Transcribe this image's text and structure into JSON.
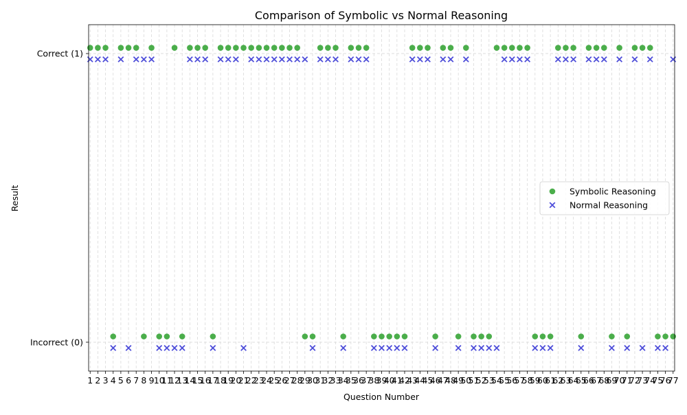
{
  "chart_data": {
    "type": "scatter",
    "title": "Comparison of Symbolic vs Normal Reasoning",
    "xlabel": "Question Number",
    "ylabel": "Result",
    "x_ticks": [
      1,
      2,
      3,
      4,
      5,
      6,
      7,
      8,
      9,
      10,
      11,
      12,
      13,
      14,
      15,
      16,
      17,
      18,
      19,
      20,
      21,
      22,
      23,
      24,
      25,
      26,
      27,
      28,
      29,
      30,
      31,
      32,
      33,
      34,
      35,
      36,
      37,
      38,
      39,
      40,
      41,
      42,
      43,
      44,
      45,
      46,
      47,
      48,
      49,
      50,
      51,
      52,
      53,
      54,
      55,
      56,
      57,
      58,
      59,
      60,
      61,
      62,
      63,
      64,
      65,
      66,
      67,
      68,
      69,
      70,
      71,
      72,
      73,
      74,
      75,
      76,
      77
    ],
    "xlim": [
      0.8,
      77.2
    ],
    "y_ticks": [
      {
        "value": 0,
        "label": "Incorrect (0)"
      },
      {
        "value": 1,
        "label": "Correct (1)"
      }
    ],
    "ylim": [
      -0.1,
      1.1
    ],
    "grid": true,
    "legend_position": "center-right",
    "series": [
      {
        "name": "Symbolic Reasoning",
        "marker": "circle",
        "color": "#2ca02c",
        "offset": 0.02,
        "values": [
          1,
          1,
          1,
          0,
          1,
          1,
          1,
          0,
          1,
          0,
          0,
          1,
          0,
          1,
          1,
          1,
          0,
          1,
          1,
          1,
          1,
          1,
          1,
          1,
          1,
          1,
          1,
          1,
          0,
          0,
          1,
          1,
          1,
          0,
          1,
          1,
          1,
          0,
          0,
          0,
          0,
          0,
          1,
          1,
          1,
          0,
          1,
          1,
          0,
          1,
          0,
          0,
          0,
          1,
          1,
          1,
          1,
          1,
          0,
          0,
          0,
          1,
          1,
          1,
          0,
          1,
          1,
          1,
          0,
          1,
          0,
          1,
          1,
          1,
          0,
          0,
          0
        ]
      },
      {
        "name": "Normal Reasoning",
        "marker": "x",
        "color": "#3a3ad6",
        "offset": -0.02,
        "values": [
          1,
          1,
          1,
          0,
          1,
          0,
          1,
          1,
          1,
          0,
          0,
          0,
          0,
          1,
          1,
          1,
          0,
          1,
          1,
          1,
          0,
          1,
          1,
          1,
          1,
          1,
          1,
          1,
          1,
          0,
          1,
          1,
          1,
          0,
          1,
          1,
          1,
          0,
          0,
          0,
          0,
          0,
          1,
          1,
          1,
          0,
          1,
          1,
          0,
          1,
          0,
          0,
          0,
          0,
          1,
          1,
          1,
          1,
          0,
          0,
          0,
          1,
          1,
          1,
          0,
          1,
          1,
          1,
          0,
          1,
          0,
          1,
          0,
          1,
          0,
          0,
          1
        ]
      }
    ]
  }
}
